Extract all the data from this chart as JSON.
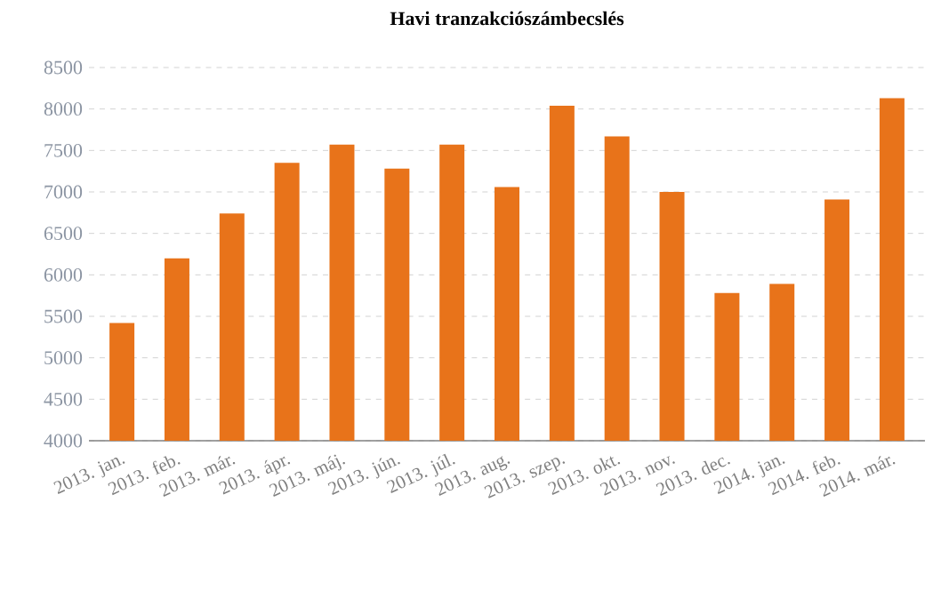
{
  "chart_data": {
    "type": "bar",
    "title": "Havi tranzakciószámbecslés",
    "categories": [
      "2013. jan.",
      "2013. feb.",
      "2013. már.",
      "2013. ápr.",
      "2013. máj.",
      "2013. jún.",
      "2013. júl.",
      "2013. aug.",
      "2013. szep.",
      "2013. okt.",
      "2013. nov.",
      "2013. dec.",
      "2014. jan.",
      "2014. feb.",
      "2014. már."
    ],
    "values": [
      5420,
      6200,
      6740,
      7350,
      7570,
      7280,
      7570,
      7060,
      8040,
      7670,
      7000,
      5780,
      5890,
      6910,
      8130
    ],
    "color": "#e8731a",
    "ylim": [
      4000,
      8500
    ],
    "yticks": [
      4000,
      4500,
      5000,
      5500,
      6000,
      6500,
      7000,
      7500,
      8000,
      8500
    ],
    "grid": "y"
  }
}
